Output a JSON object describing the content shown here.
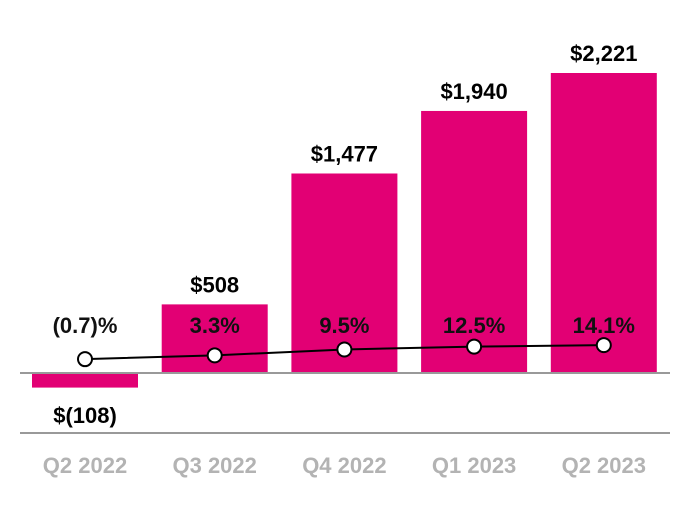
{
  "chart_data": {
    "type": "bar",
    "title": "",
    "xlabel": "",
    "ylabel": "",
    "categories": [
      "Q2 2022",
      "Q3 2022",
      "Q4 2022",
      "Q1 2023",
      "Q2 2023"
    ],
    "series": [
      {
        "type": "bar",
        "values": [
          -108,
          508,
          1477,
          1940,
          2221
        ],
        "labels": [
          "$(108)",
          "$508",
          "$1,477",
          "$1,940",
          "$2,221"
        ]
      },
      {
        "type": "line",
        "values": [
          -0.7,
          3.3,
          9.5,
          12.5,
          14.1
        ],
        "labels": [
          "(0.7)%",
          "3.3%",
          "9.5%",
          "12.5%",
          "14.1%"
        ]
      }
    ],
    "grid": false,
    "legend": "none",
    "colors": {
      "bar": "#E20074",
      "line": "#000000",
      "marker_fill": "#ffffff",
      "category_text": "#b3b3b3",
      "axis": "#999999"
    }
  }
}
